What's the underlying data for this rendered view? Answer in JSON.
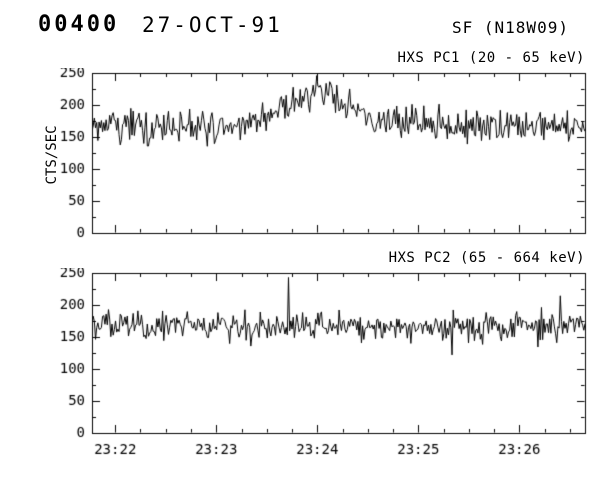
{
  "header": {
    "frame_id": "00400",
    "date": "27-OCT-91",
    "flare_label": "SF (N18W09)"
  },
  "chart_data": [
    {
      "type": "line",
      "title": "HXS PC1 (20 - 65 keV)",
      "ylabel": "CTS/SEC",
      "xlim": [
        21.77,
        26.65
      ],
      "ylim": [
        0,
        250
      ],
      "yticks": [
        0,
        50,
        100,
        150,
        200,
        250
      ],
      "ytick_minor_step": 25,
      "xticks": [
        22,
        23,
        24,
        25,
        26
      ],
      "xtick_labels": [
        "23:22",
        "23:23",
        "23:24",
        "23:25",
        "23:26"
      ],
      "xtick_minor_step": 0.25,
      "show_xtick_labels": false,
      "legend": "none",
      "grid": false,
      "series": {
        "name": "HXS PC1 count rate",
        "baseline": 165,
        "noise_sigma": 13,
        "n_points": 420,
        "seed": 19911027,
        "peaks": [
          {
            "center": 24.0,
            "width": 0.22,
            "amplitude": 42
          },
          {
            "center": 24.05,
            "width": 0.5,
            "amplitude": 22
          }
        ],
        "spikes": [
          {
            "x": 22.32,
            "value": 136
          }
        ]
      }
    },
    {
      "type": "line",
      "title": "HXS PC2 (65 - 664 keV)",
      "ylabel": "",
      "xlim": [
        21.77,
        26.65
      ],
      "ylim": [
        0,
        250
      ],
      "yticks": [
        0,
        50,
        100,
        150,
        200,
        250
      ],
      "ytick_minor_step": 25,
      "xticks": [
        22,
        23,
        24,
        25,
        26
      ],
      "xtick_labels": [
        "23:22",
        "23:23",
        "23:24",
        "23:25",
        "23:26"
      ],
      "xtick_minor_step": 0.25,
      "show_xtick_labels": true,
      "legend": "none",
      "grid": false,
      "series": {
        "name": "HXS PC2 count rate",
        "baseline": 167,
        "noise_sigma": 11,
        "n_points": 420,
        "seed": 4221991,
        "peaks": [],
        "spikes": [
          {
            "x": 23.72,
            "value": 243
          },
          {
            "x": 25.33,
            "value": 122
          }
        ]
      }
    }
  ]
}
